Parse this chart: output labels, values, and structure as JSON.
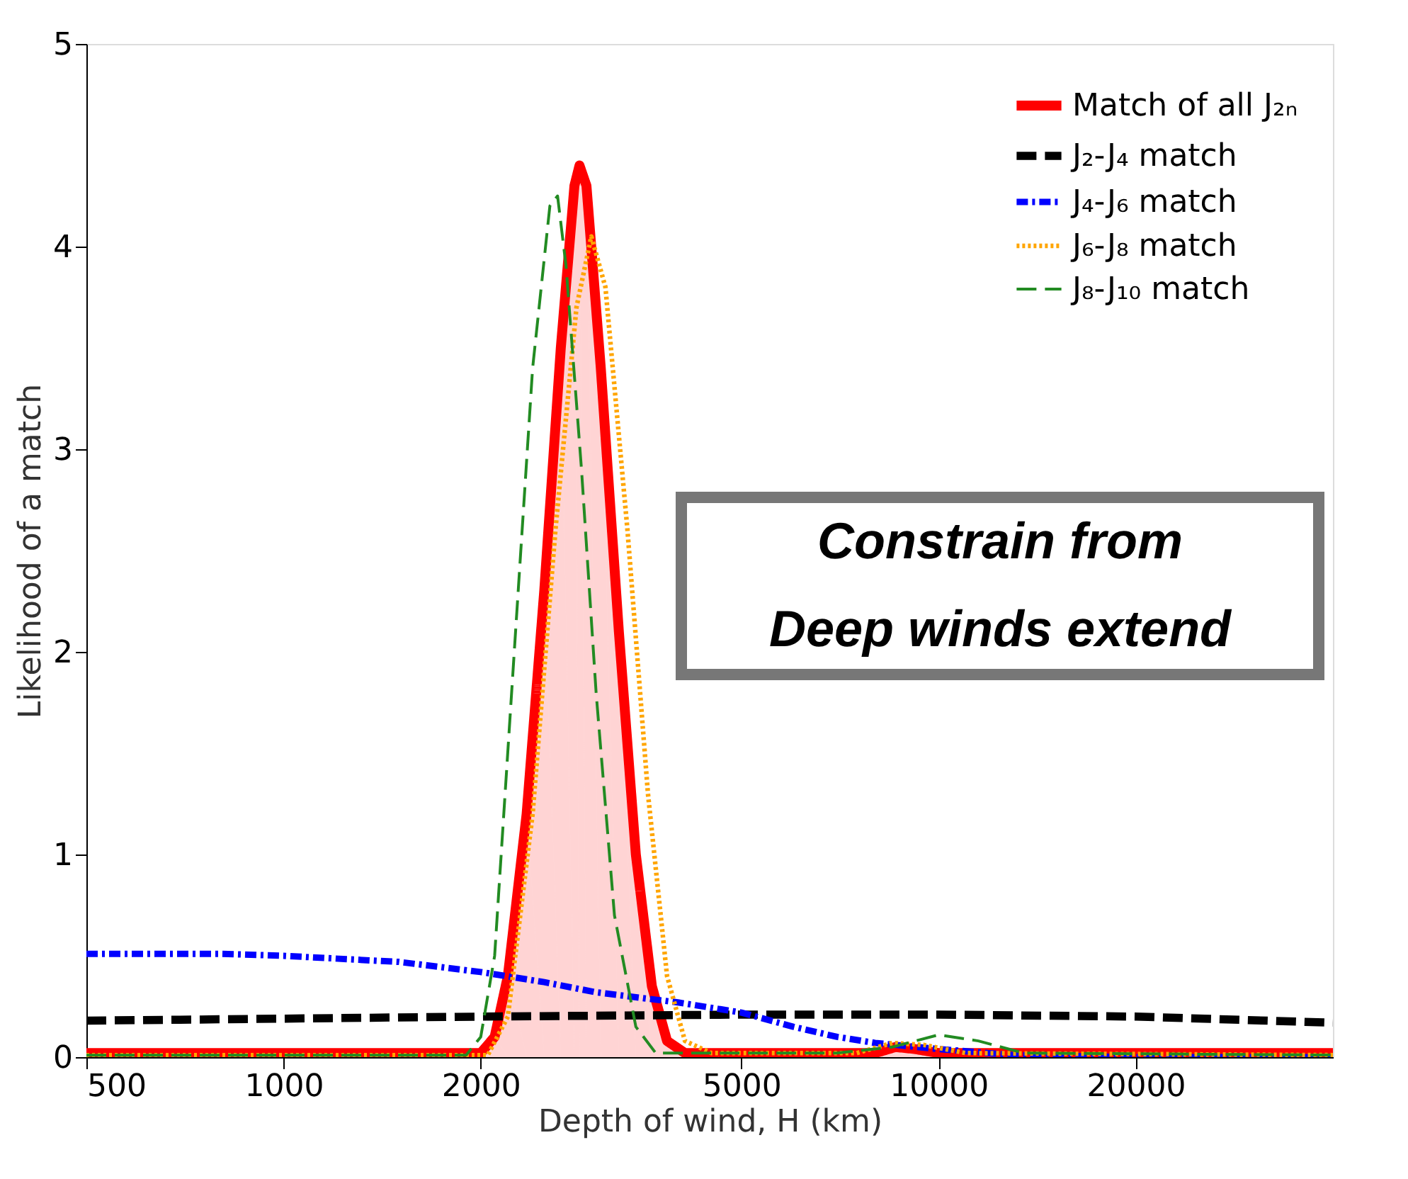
{
  "chart_data": {
    "type": "line",
    "xlabel": "Depth of wind, H (km)",
    "ylabel": "Likelihood of a match",
    "log": "x",
    "xlim": [
      500,
      40000
    ],
    "xticks": [
      500,
      1000,
      2000,
      5000,
      10000,
      20000
    ],
    "ylim": [
      0,
      5
    ],
    "yticks": [
      0,
      1,
      2,
      3,
      4,
      5
    ],
    "grid": false,
    "legend": "top right",
    "annotations": [
      "Constrain from",
      "Deep winds extend"
    ],
    "series": [
      {
        "name": "Match of all J₂ₙ",
        "type": "area",
        "color": "#ff0000",
        "line_style": "solid",
        "x": [
          500,
          2000,
          2100,
          2200,
          2350,
          2500,
          2650,
          2780,
          2830,
          2900,
          3050,
          3250,
          3450,
          3650,
          3850,
          4100,
          8000,
          8600,
          9200,
          10000,
          40000
        ],
        "values": [
          0.02,
          0.02,
          0.1,
          0.4,
          1.2,
          2.3,
          3.5,
          4.3,
          4.4,
          4.3,
          3.4,
          2.1,
          1.0,
          0.35,
          0.08,
          0.02,
          0.02,
          0.05,
          0.04,
          0.02,
          0.02
        ]
      },
      {
        "name": "J₂-J₄ match",
        "color": "#000000",
        "line_style": "dashed",
        "x": [
          500,
          1000,
          2000,
          5000,
          10000,
          20000,
          40000
        ],
        "values": [
          0.18,
          0.19,
          0.2,
          0.21,
          0.21,
          0.2,
          0.17
        ]
      },
      {
        "name": "J₄-J₆ match",
        "color": "#0000ff",
        "line_style": "dashdot",
        "x": [
          500,
          800,
          1000,
          1500,
          2000,
          2500,
          3000,
          4000,
          5000,
          6000,
          7000,
          8000,
          10000,
          13000,
          20000,
          40000
        ],
        "values": [
          0.51,
          0.51,
          0.5,
          0.47,
          0.42,
          0.37,
          0.32,
          0.27,
          0.22,
          0.15,
          0.1,
          0.07,
          0.04,
          0.01,
          0.0,
          0.0
        ]
      },
      {
        "name": "J₆-J₈ match",
        "color": "#ffa500",
        "line_style": "dotted",
        "x": [
          500,
          2050,
          2200,
          2400,
          2600,
          2800,
          2950,
          3100,
          3350,
          3600,
          3850,
          4100,
          4500,
          7500,
          8500,
          9500,
          11000,
          40000
        ],
        "values": [
          0.01,
          0.01,
          0.2,
          1.2,
          2.6,
          3.7,
          4.05,
          3.8,
          2.6,
          1.3,
          0.4,
          0.08,
          0.02,
          0.02,
          0.07,
          0.06,
          0.02,
          0.01
        ]
      },
      {
        "name": "J₈-J₁₀ match",
        "color": "#228b22",
        "line_style": "dashed",
        "x": [
          500,
          1900,
          2000,
          2100,
          2250,
          2400,
          2550,
          2620,
          2700,
          2850,
          3000,
          3200,
          3450,
          3700,
          7000,
          8500,
          10000,
          11500,
          13500,
          40000
        ],
        "values": [
          0.01,
          0.01,
          0.1,
          0.5,
          2.0,
          3.4,
          4.2,
          4.25,
          3.9,
          2.9,
          1.8,
          0.7,
          0.15,
          0.02,
          0.02,
          0.05,
          0.11,
          0.08,
          0.02,
          0.01
        ]
      }
    ]
  }
}
